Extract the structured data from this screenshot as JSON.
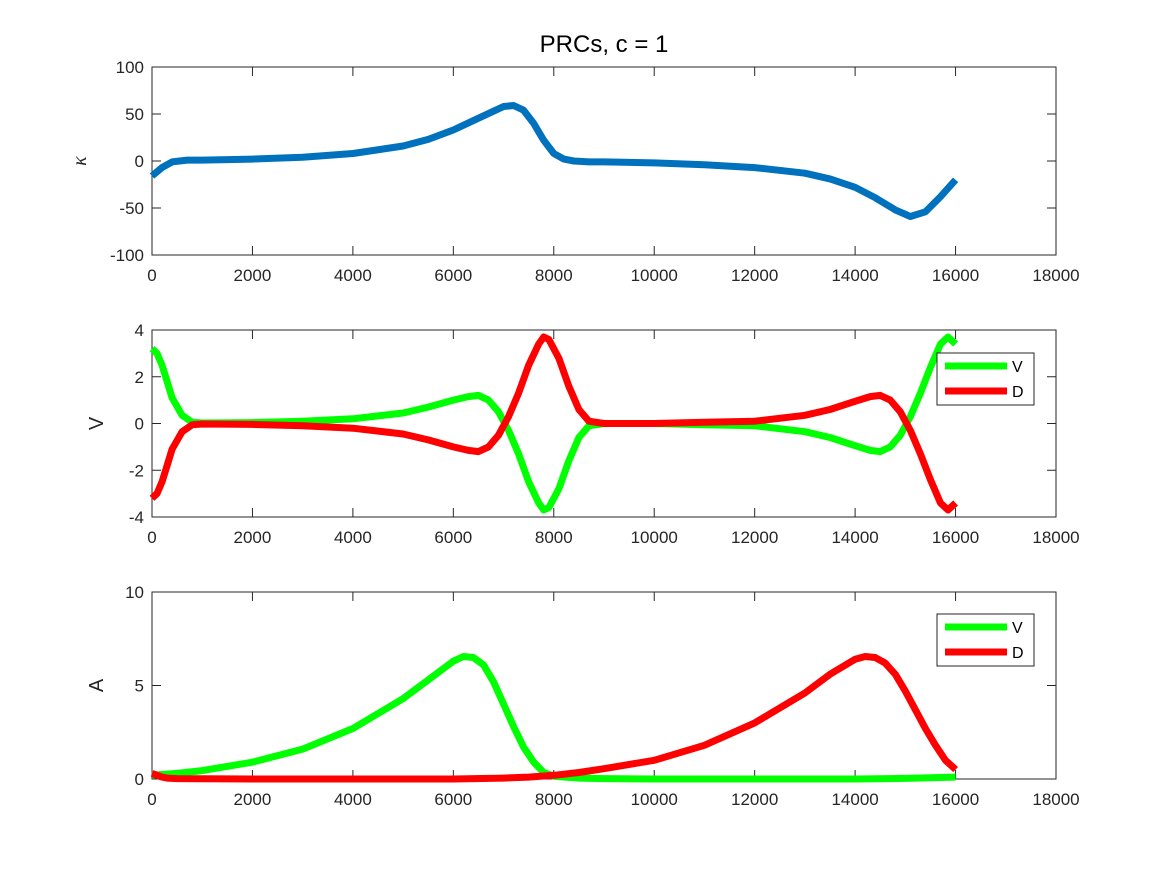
{
  "figure": {
    "title": "PRCs, c = 1"
  },
  "colors": {
    "kappa": "#0072BD",
    "V": "#00FF00",
    "D": "#FF0000",
    "axis": "#262626"
  },
  "chart_data": [
    {
      "type": "line",
      "title": "PRCs, c = 1",
      "ylabel": "κ",
      "xlim": [
        0,
        18000
      ],
      "ylim": [
        -100,
        100
      ],
      "xticks": [
        "0",
        "2000",
        "4000",
        "6000",
        "8000",
        "10000",
        "12000",
        "14000",
        "16000",
        "18000"
      ],
      "yticks": [
        "-100",
        "-50",
        "0",
        "50",
        "100"
      ],
      "legend": null,
      "series": [
        {
          "color": "#0072BD",
          "x": [
            0,
            200,
            400,
            700,
            1000,
            2000,
            3000,
            4000,
            5000,
            5500,
            6000,
            6400,
            6800,
            7000,
            7200,
            7400,
            7600,
            7800,
            8000,
            8200,
            8400,
            8700,
            9000,
            10000,
            11000,
            12000,
            13000,
            13500,
            14000,
            14400,
            14800,
            15100,
            15400,
            15700,
            16000
          ],
          "y": [
            -16,
            -7,
            -1,
            1,
            1,
            2,
            4,
            8,
            16,
            23,
            33,
            43,
            53,
            58,
            59,
            54,
            40,
            22,
            8,
            2,
            0,
            -1,
            -1,
            -2,
            -4,
            -7,
            -13,
            -19,
            -28,
            -39,
            -52,
            -59,
            -54,
            -38,
            -20
          ]
        }
      ]
    },
    {
      "type": "line",
      "ylabel": "V",
      "xlim": [
        0,
        18000
      ],
      "ylim": [
        -4,
        4
      ],
      "xticks": [
        "0",
        "2000",
        "4000",
        "6000",
        "8000",
        "10000",
        "12000",
        "14000",
        "16000",
        "18000"
      ],
      "yticks": [
        "-4",
        "-2",
        "0",
        "2",
        "4"
      ],
      "legend": "top-right",
      "series": [
        {
          "name": "V",
          "color": "#00FF00",
          "x": [
            0,
            100,
            200,
            300,
            400,
            600,
            800,
            1000,
            2000,
            3000,
            4000,
            5000,
            5500,
            6000,
            6300,
            6500,
            6700,
            6900,
            7100,
            7300,
            7500,
            7700,
            7800,
            7900,
            8100,
            8300,
            8500,
            8700,
            9000,
            10000,
            11000,
            12000,
            13000,
            13500,
            14000,
            14300,
            14500,
            14700,
            14900,
            15100,
            15300,
            15500,
            15700,
            15850,
            16000
          ],
          "y": [
            3.2,
            3.0,
            2.5,
            1.8,
            1.1,
            0.35,
            0.05,
            0.02,
            0.04,
            0.1,
            0.2,
            0.45,
            0.7,
            1.0,
            1.15,
            1.2,
            1.0,
            0.5,
            -0.3,
            -1.3,
            -2.5,
            -3.4,
            -3.7,
            -3.6,
            -2.8,
            -1.6,
            -0.6,
            -0.1,
            0.0,
            0.0,
            -0.05,
            -0.1,
            -0.35,
            -0.6,
            -0.95,
            -1.15,
            -1.2,
            -1.0,
            -0.5,
            0.3,
            1.3,
            2.4,
            3.4,
            3.7,
            3.4
          ]
        },
        {
          "name": "D",
          "color": "#FF0000",
          "x": [
            0,
            100,
            200,
            300,
            400,
            600,
            800,
            1000,
            2000,
            3000,
            4000,
            5000,
            5500,
            6000,
            6300,
            6500,
            6700,
            6900,
            7100,
            7300,
            7500,
            7700,
            7800,
            7900,
            8100,
            8300,
            8500,
            8700,
            9000,
            10000,
            11000,
            12000,
            13000,
            13500,
            14000,
            14300,
            14500,
            14700,
            14900,
            15100,
            15300,
            15500,
            15700,
            15850,
            16000
          ],
          "y": [
            -3.2,
            -3.0,
            -2.5,
            -1.8,
            -1.1,
            -0.35,
            -0.05,
            -0.02,
            -0.04,
            -0.1,
            -0.2,
            -0.45,
            -0.7,
            -1.0,
            -1.15,
            -1.2,
            -1.0,
            -0.5,
            0.3,
            1.3,
            2.5,
            3.4,
            3.7,
            3.6,
            2.8,
            1.6,
            0.6,
            0.1,
            0.0,
            0.0,
            0.05,
            0.1,
            0.35,
            0.6,
            0.95,
            1.15,
            1.2,
            1.0,
            0.5,
            -0.3,
            -1.3,
            -2.4,
            -3.4,
            -3.7,
            -3.4
          ]
        }
      ]
    },
    {
      "type": "line",
      "ylabel": "A",
      "xlim": [
        0,
        18000
      ],
      "ylim": [
        0,
        10
      ],
      "xticks": [
        "0",
        "2000",
        "4000",
        "6000",
        "8000",
        "10000",
        "12000",
        "14000",
        "16000",
        "18000"
      ],
      "yticks": [
        "0",
        "5",
        "10"
      ],
      "legend": "top-right",
      "series": [
        {
          "name": "V",
          "color": "#00FF00",
          "x": [
            0,
            500,
            1000,
            2000,
            3000,
            4000,
            5000,
            5500,
            6000,
            6200,
            6400,
            6600,
            6800,
            7000,
            7200,
            7400,
            7600,
            7800,
            8000,
            8500,
            9000,
            10000,
            12000,
            14000,
            15000,
            16000
          ],
          "y": [
            0.2,
            0.3,
            0.45,
            0.9,
            1.6,
            2.7,
            4.3,
            5.3,
            6.3,
            6.55,
            6.5,
            6.1,
            5.2,
            4.0,
            2.8,
            1.7,
            0.9,
            0.35,
            0.15,
            0.05,
            0.02,
            0.0,
            0.0,
            0.0,
            0.03,
            0.1
          ]
        },
        {
          "name": "D",
          "color": "#FF0000",
          "x": [
            0,
            100,
            200,
            300,
            500,
            1000,
            2000,
            4000,
            6000,
            7000,
            7500,
            8000,
            8500,
            9000,
            10000,
            11000,
            12000,
            13000,
            13500,
            14000,
            14200,
            14400,
            14600,
            14800,
            15000,
            15200,
            15400,
            15600,
            15800,
            16000
          ],
          "y": [
            0.3,
            0.2,
            0.1,
            0.05,
            0.02,
            0.01,
            0.0,
            0.0,
            0.0,
            0.05,
            0.1,
            0.2,
            0.35,
            0.55,
            1.0,
            1.8,
            3.0,
            4.6,
            5.6,
            6.4,
            6.55,
            6.5,
            6.2,
            5.6,
            4.7,
            3.7,
            2.7,
            1.8,
            1.0,
            0.5
          ]
        }
      ]
    }
  ]
}
